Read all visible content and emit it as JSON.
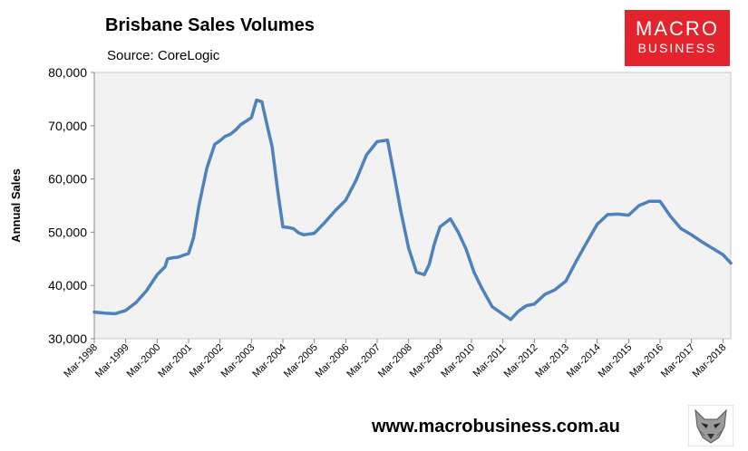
{
  "header": {
    "title": "Brisbane Sales Volumes",
    "source": "Source: CoreLogic"
  },
  "logo": {
    "line1": "MACRO",
    "line2": "BUSINESS"
  },
  "footer": {
    "website": "www.macrobusiness.com.au",
    "mascot_icon": "wolf-icon"
  },
  "chart_data": {
    "type": "line",
    "title": "Brisbane Sales Volumes",
    "xlabel": "",
    "ylabel": "Annual Sales",
    "ylim": [
      30000,
      80000
    ],
    "yticks": [
      30000,
      40000,
      50000,
      60000,
      70000,
      80000
    ],
    "ytick_labels": [
      "30,000",
      "40,000",
      "50,000",
      "60,000",
      "70,000",
      "80,000"
    ],
    "xlim": [
      1998.17,
      2018.42
    ],
    "xticks": [
      1998.17,
      1999.17,
      2000.17,
      2001.17,
      2002.17,
      2003.17,
      2004.17,
      2005.17,
      2006.17,
      2007.17,
      2008.17,
      2009.17,
      2010.17,
      2011.17,
      2012.17,
      2013.17,
      2014.17,
      2015.17,
      2016.17,
      2017.17,
      2018.17
    ],
    "xtick_labels": [
      "Mar-1998",
      "Mar-1999",
      "Mar-2000",
      "Mar-2001",
      "Mar-2002",
      "Mar-2003",
      "Mar-2004",
      "Mar-2005",
      "Mar-2006",
      "Mar-2007",
      "Mar-2008",
      "Mar-2009",
      "Mar-2010",
      "Mar-2011",
      "Mar-2012",
      "Mar-2013",
      "Mar-2014",
      "Mar-2015",
      "Mar-2016",
      "Mar-2017",
      "Mar-2018"
    ],
    "grid": false,
    "legend": "none",
    "line_color": "#4f81bd",
    "plot_background": "#f2f2f2",
    "series": [
      {
        "x": [
          1998.17,
          1998.5,
          1998.83,
          1999.17,
          1999.5,
          1999.83,
          2000.17,
          2000.42,
          2000.5,
          2000.67,
          2000.83,
          2001.17,
          2001.33,
          2001.5,
          2001.75,
          2002.0,
          2002.17,
          2002.33,
          2002.5,
          2002.67,
          2002.83,
          2003.17,
          2003.33,
          2003.5,
          2003.67,
          2003.83,
          2004.0,
          2004.17,
          2004.33,
          2004.5,
          2004.67,
          2004.83,
          2005.17,
          2005.5,
          2005.83,
          2006.17,
          2006.5,
          2006.83,
          2007.17,
          2007.5,
          2007.75,
          2007.92,
          2008.17,
          2008.42,
          2008.67,
          2008.83,
          2009.0,
          2009.17,
          2009.5,
          2009.75,
          2010.0,
          2010.25,
          2010.5,
          2010.83,
          2011.17,
          2011.42,
          2011.67,
          2011.92,
          2012.17,
          2012.5,
          2012.83,
          2013.17,
          2013.5,
          2013.83,
          2014.17,
          2014.5,
          2014.83,
          2015.17,
          2015.5,
          2015.83,
          2016.17,
          2016.5,
          2016.83,
          2017.17,
          2017.5,
          2017.83,
          2018.17,
          2018.42
        ],
        "y": [
          35000,
          34800,
          34700,
          35300,
          36800,
          39000,
          42000,
          43500,
          45000,
          45200,
          45300,
          46000,
          49000,
          55000,
          62000,
          66500,
          67200,
          68000,
          68400,
          69200,
          70200,
          71500,
          74800,
          74500,
          70000,
          66000,
          58000,
          51000,
          50900,
          50700,
          49900,
          49500,
          49800,
          51800,
          54000,
          56000,
          59800,
          64500,
          67000,
          67300,
          59500,
          54000,
          47000,
          42500,
          42000,
          44000,
          48000,
          51000,
          52500,
          50000,
          46800,
          42500,
          39500,
          36000,
          34600,
          33600,
          35200,
          36200,
          36500,
          38300,
          39200,
          40800,
          44500,
          48000,
          51500,
          53300,
          53400,
          53200,
          55000,
          55800,
          55800,
          53000,
          50700,
          49500,
          48200,
          47000,
          45800,
          44200
        ]
      }
    ]
  }
}
